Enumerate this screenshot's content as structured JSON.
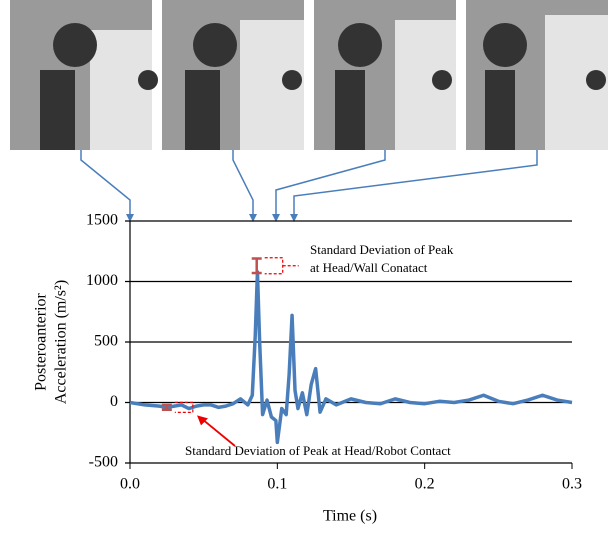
{
  "chart_data": {
    "type": "line",
    "x_label": "Time (s)",
    "y_label_lines": [
      "Posteroanterior",
      "Acceleration (m/s²)"
    ],
    "xlim": [
      0,
      0.3
    ],
    "xticks": [
      {
        "value": 0,
        "label": "0.0"
      },
      0.1,
      0.2,
      0.3
    ],
    "ylim": [
      -500,
      1500
    ],
    "yticks": [
      1500,
      1000,
      500,
      0,
      -500
    ],
    "grid": true,
    "series": [
      {
        "color": "#4a7ebb",
        "x": [
          0,
          0.01,
          0.02,
          0.025,
          0.03,
          0.035,
          0.04,
          0.045,
          0.05,
          0.055,
          0.06,
          0.065,
          0.07,
          0.075,
          0.08,
          0.083,
          0.085,
          0.0865,
          0.088,
          0.09,
          0.093,
          0.096,
          0.099,
          0.1,
          0.103,
          0.106,
          0.108,
          0.11,
          0.112,
          0.114,
          0.117,
          0.12,
          0.123,
          0.126,
          0.129,
          0.133,
          0.14,
          0.15,
          0.16,
          0.17,
          0.18,
          0.19,
          0.2,
          0.21,
          0.22,
          0.23,
          0.24,
          0.25,
          0.26,
          0.27,
          0.28,
          0.29,
          0.3
        ],
        "values": [
          0,
          -20,
          -30,
          -40,
          -30,
          -20,
          -50,
          -30,
          -20,
          -20,
          -40,
          -30,
          -10,
          30,
          -20,
          60,
          550,
          1080,
          500,
          -100,
          20,
          -120,
          -150,
          -330,
          -50,
          -100,
          230,
          720,
          100,
          -50,
          80,
          -100,
          150,
          280,
          -80,
          30,
          -20,
          30,
          0,
          -10,
          30,
          0,
          -10,
          10,
          0,
          20,
          60,
          10,
          -10,
          20,
          60,
          20,
          0
        ]
      }
    ],
    "error_bars": [
      {
        "x": 0.086,
        "value": 1130,
        "error": 60,
        "color": "#c0504d",
        "label_lines": [
          "Standard Deviation of Peak",
          "at Head/Wall Conatact"
        ]
      },
      {
        "x": 0.025,
        "value": -40,
        "error": 20,
        "color": "#c0504d",
        "label_lines": [
          "Standard Deviation of Peak at Head/Robot Contact"
        ]
      }
    ]
  }
}
